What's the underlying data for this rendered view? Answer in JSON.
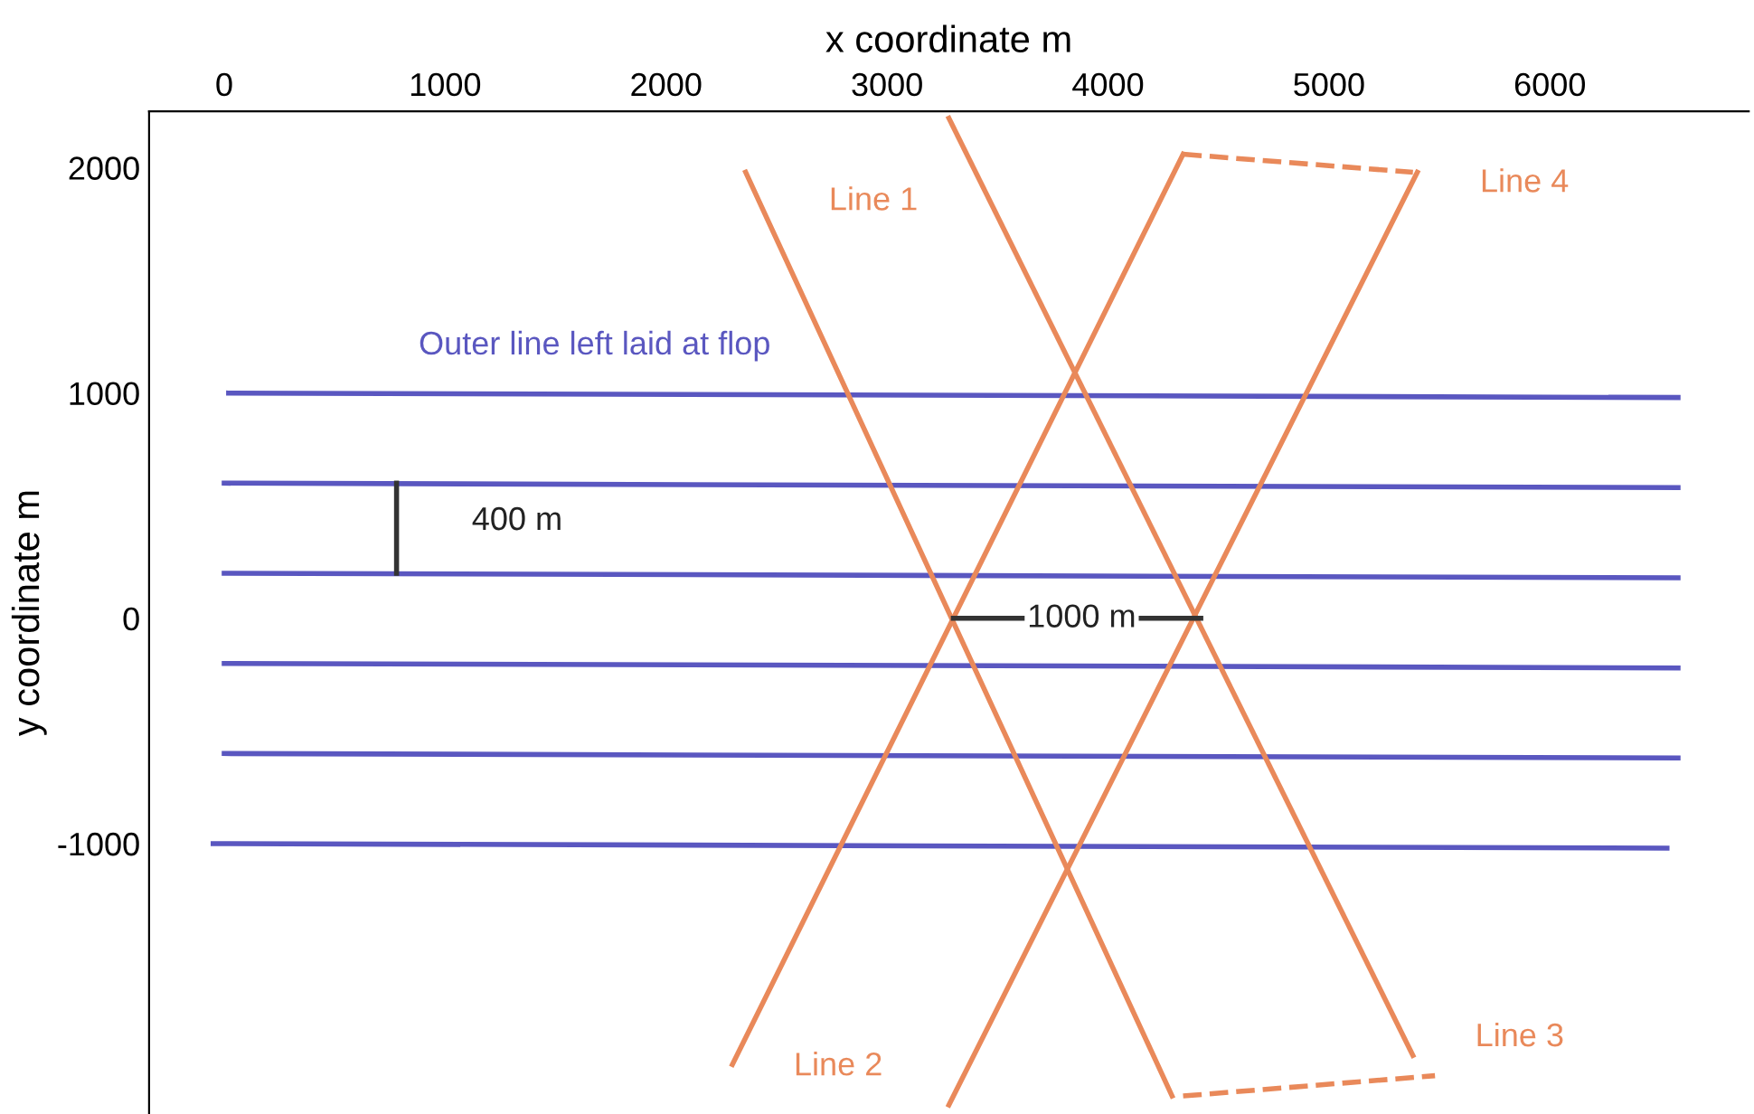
{
  "chart_data": {
    "type": "line",
    "xlabel": "x coordinate m",
    "ylabel": "y coordinate m",
    "xlim": [
      -340,
      6900
    ],
    "ylim": [
      -2200,
      2250
    ],
    "xticks": [
      0,
      1000,
      2000,
      3000,
      4000,
      5000,
      6000
    ],
    "yticks": [
      {
        "value": -1000,
        "label": "-1000"
      },
      0,
      1000,
      2000
    ],
    "grid": false,
    "line_style": "solid",
    "marker": "none",
    "series": [
      {
        "color": "#5a57c0",
        "x": [
          20,
          6580
        ],
        "values": [
          1000,
          980
        ]
      },
      {
        "color": "#5a57c0",
        "x": [
          0,
          6580
        ],
        "values": [
          600,
          580
        ]
      },
      {
        "color": "#5a57c0",
        "x": [
          0,
          6580
        ],
        "values": [
          200,
          180
        ]
      },
      {
        "color": "#5a57c0",
        "x": [
          0,
          6580
        ],
        "values": [
          -200,
          -220
        ]
      },
      {
        "color": "#5a57c0",
        "x": [
          0,
          6580
        ],
        "values": [
          -600,
          -620
        ]
      },
      {
        "color": "#5a57c0",
        "x": [
          -50,
          6530
        ],
        "values": [
          -1000,
          -1020
        ]
      },
      {
        "color": "#e9895a",
        "x": [
          2360,
          4290
        ],
        "values": [
          1980,
          -2120
        ]
      },
      {
        "color": "#e9895a",
        "x": [
          2300,
          4340
        ],
        "values": [
          -1980,
          2060
        ]
      },
      {
        "color": "#e9895a",
        "x": [
          3280,
          5380
        ],
        "values": [
          2220,
          -1940
        ]
      },
      {
        "color": "#e9895a",
        "x": [
          3280,
          5400
        ],
        "values": [
          -2160,
          1980
        ]
      },
      {
        "color": "#e9895a",
        "x": [
          4340,
          5380
        ],
        "values": [
          2060,
          1980
        ],
        "line_style": "dashed"
      },
      {
        "color": "#e9895a",
        "x": [
          4340,
          5480
        ],
        "values": [
          -2120,
          -2030
        ],
        "line_style": "dashed"
      },
      {
        "color": "#333333",
        "x": [
          780,
          780
        ],
        "values": [
          600,
          200
        ]
      },
      {
        "color": "#333333",
        "x": [
          3300,
          4420
        ],
        "values": [
          0,
          0
        ]
      }
    ],
    "annotations": [
      "Line 1",
      "Line 2",
      "Line 3",
      "Line 4",
      "Outer line left laid at flop",
      "400 m",
      "1000 m"
    ]
  }
}
